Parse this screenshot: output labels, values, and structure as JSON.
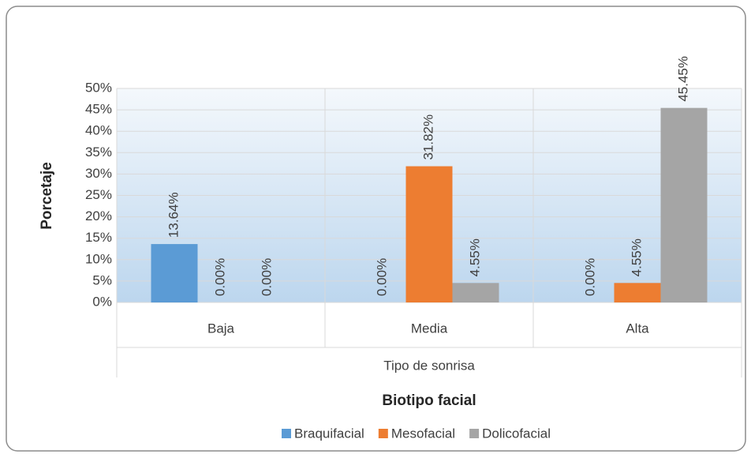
{
  "chart_data": {
    "type": "bar",
    "ylabel": "Porcetaje",
    "category_group": "Tipo de sonrisa",
    "xlabel": "Biotipo facial",
    "categories": [
      "Baja",
      "Media",
      "Alta"
    ],
    "series": [
      {
        "name": "Braquifacial",
        "color": "#5b9bd5",
        "values": [
          13.64,
          0,
          0
        ],
        "value_labels": [
          "13.64%",
          "0.00%",
          "0.00%"
        ]
      },
      {
        "name": "Mesofacial",
        "color": "#ed7d31",
        "values": [
          0,
          31.82,
          4.55
        ],
        "value_labels": [
          "0.00%",
          "31.82%",
          "4.55%"
        ]
      },
      {
        "name": "Dolicofacial",
        "color": "#a5a5a5",
        "values": [
          0,
          4.55,
          45.45
        ],
        "value_labels": [
          "0.00%",
          "4.55%",
          "45.45%"
        ]
      }
    ],
    "ylim": [
      0,
      50
    ],
    "yticks": [
      {
        "value": 0,
        "label": "0%"
      },
      {
        "value": 5,
        "label": "5%"
      },
      {
        "value": 10,
        "label": "10%"
      },
      {
        "value": 15,
        "label": "15%"
      },
      {
        "value": 20,
        "label": "20%"
      },
      {
        "value": 25,
        "label": "25%"
      },
      {
        "value": 30,
        "label": "30%"
      },
      {
        "value": 35,
        "label": "35%"
      },
      {
        "value": 40,
        "label": "40%"
      },
      {
        "value": 45,
        "label": "45%"
      },
      {
        "value": 50,
        "label": "50%"
      }
    ],
    "grid": true,
    "legend": "bottom"
  }
}
